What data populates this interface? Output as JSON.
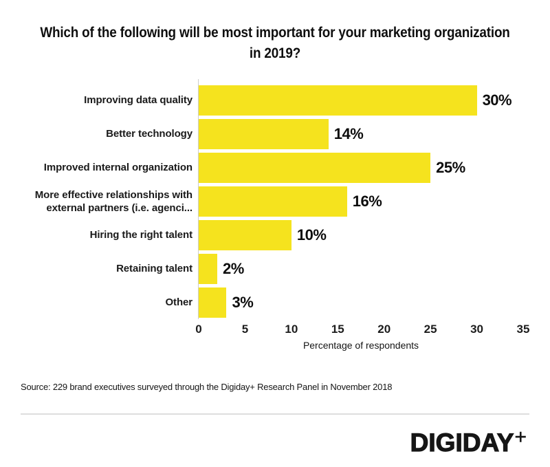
{
  "title_lines": [
    "Which of the following will be most important for your marketing organization",
    "in 2019?"
  ],
  "chart_data": {
    "type": "bar",
    "orientation": "horizontal",
    "title": "Which of the following will be most important for your marketing organization in 2019?",
    "categories": [
      "Improving data quality",
      "Better technology",
      "Improved internal organization",
      "More effective relationships with external partners (i.e. agenci...",
      "Hiring the right talent",
      "Retaining talent",
      "Other"
    ],
    "values": [
      30,
      14,
      25,
      16,
      10,
      2,
      3
    ],
    "value_labels": [
      "30%",
      "14%",
      "25%",
      "16%",
      "10%",
      "2%",
      "3%"
    ],
    "xlabel": "Percentage of respondents",
    "xlim": [
      0,
      35
    ],
    "xticks": [
      0,
      5,
      10,
      15,
      20,
      25,
      30,
      35
    ],
    "grid": false,
    "legend": "none",
    "bar_color": "#F5E31E"
  },
  "colors": {
    "bar": "#F5E31E",
    "axis_line": "#cccccc",
    "divider": "#dddddd",
    "text": "#111111"
  },
  "source_note": "Source: 229 brand executives surveyed through the Digiday+ Research Panel in November 2018",
  "footer": {
    "brand": "DIGIDAY",
    "brand_suffix": "+"
  }
}
